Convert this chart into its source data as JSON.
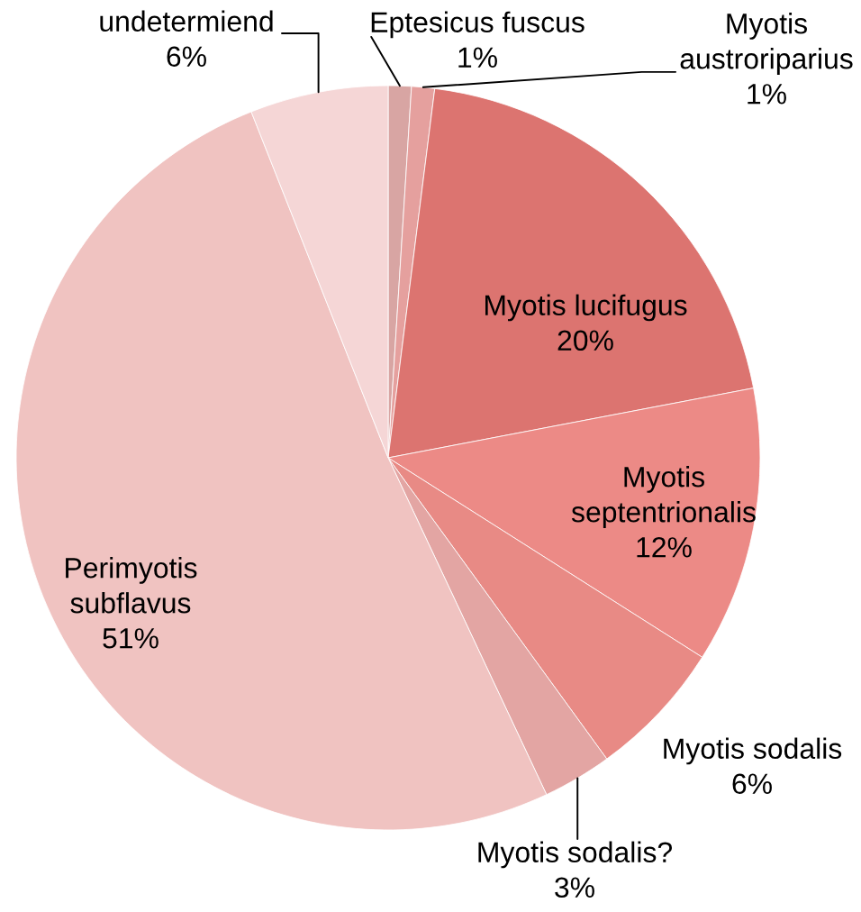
{
  "chart_data": {
    "type": "pie",
    "categories": [
      "Eptesicus fuscus",
      "Myotis austroriparius",
      "Myotis lucifugus",
      "Myotis septentrionalis",
      "Myotis sodalis",
      "Myotis sodalis?",
      "Perimyotis subflavus",
      "undetermiend"
    ],
    "values": [
      1,
      1,
      20,
      12,
      6,
      3,
      51,
      6
    ],
    "colors": [
      "#d8a5a3",
      "#e5a09e",
      "#dc7470",
      "#ec8a86",
      "#e88a85",
      "#e3a5a3",
      "#f0c3c1",
      "#f5d6d6"
    ],
    "value_labels": [
      "1%",
      "1%",
      "20%",
      "12%",
      "6%",
      "3%",
      "51%",
      "6%"
    ]
  }
}
